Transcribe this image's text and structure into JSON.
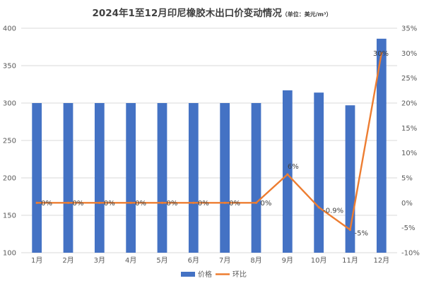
{
  "chart_data": {
    "type": "bar",
    "title": "2024年1至12月印尼橡胶木出口价变动情况",
    "title_unit": "（单位：美元/m³）",
    "categories": [
      "1月",
      "2月",
      "3月",
      "4月",
      "5月",
      "6月",
      "7月",
      "8月",
      "9月",
      "10月",
      "11月",
      "12月"
    ],
    "series": [
      {
        "name": "价格",
        "type": "bar",
        "axis": "left",
        "color": "#4472C4",
        "values": [
          300,
          300,
          300,
          300,
          300,
          300,
          300,
          300,
          317,
          314,
          297,
          386
        ]
      },
      {
        "name": "环比",
        "type": "line",
        "axis": "right",
        "color": "#ED7D31",
        "values": [
          0,
          0,
          0,
          0,
          0,
          0,
          0,
          0,
          5.7,
          -0.9,
          -5.4,
          30
        ],
        "labels": [
          "0%",
          "0%",
          "0%",
          "0%",
          "0%",
          "0%",
          "0%",
          "0%",
          "6%",
          "-0.9%",
          "-5%",
          "30%"
        ]
      }
    ],
    "ylim_left": [
      100,
      400
    ],
    "yticks_left": [
      "100",
      "150",
      "200",
      "250",
      "300",
      "350",
      "400"
    ],
    "ylim_right": [
      -10,
      35
    ],
    "yticks_right": [
      "-10%",
      "-5%",
      "0%",
      "5%",
      "10%",
      "15%",
      "20%",
      "25%",
      "30%",
      "35%"
    ],
    "grid": true,
    "legend_position": "bottom"
  }
}
